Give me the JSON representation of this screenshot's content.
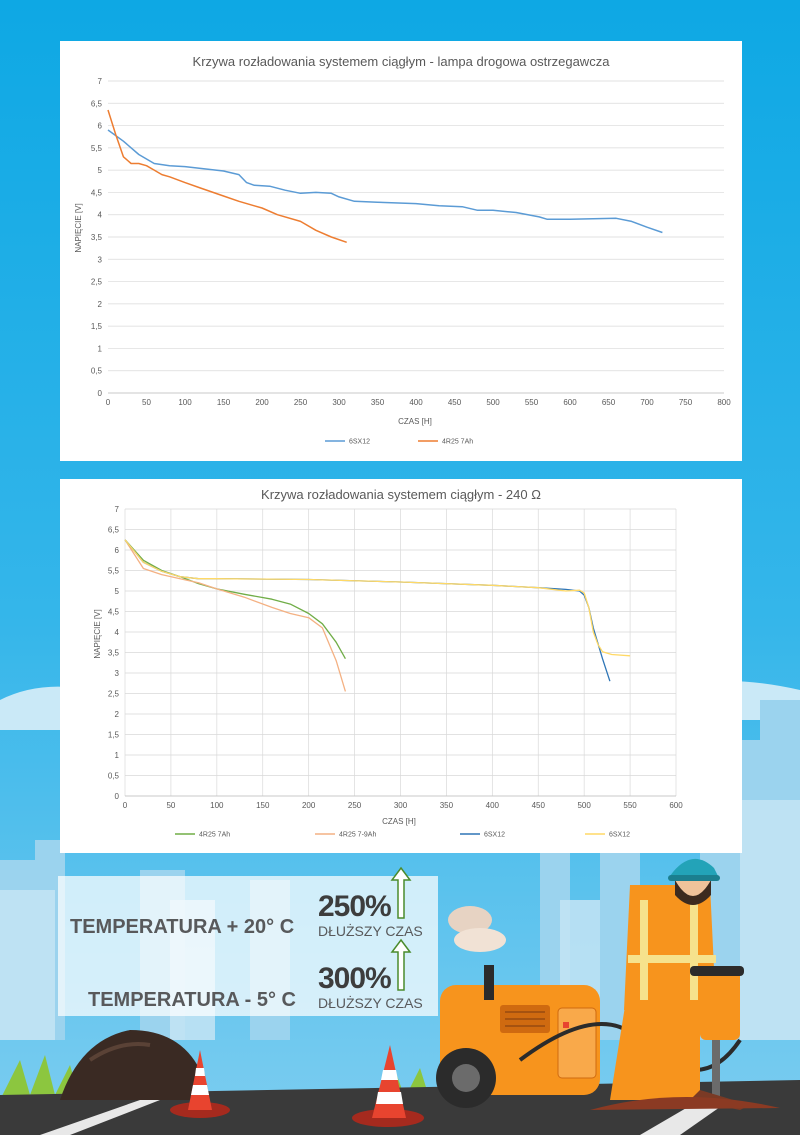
{
  "chart_data": [
    {
      "type": "line",
      "title": "Krzywa rozładowania systemem ciągłym - lampa drogowa ostrzegawcza",
      "xlabel": "CZAS [H]",
      "ylabel": "NAPIĘCIE [V]",
      "xlim": [
        0,
        800
      ],
      "ylim": [
        0,
        7
      ],
      "xticks": [
        "0",
        "50",
        "100",
        "150",
        "200",
        "250",
        "300",
        "350",
        "400",
        "450",
        "500",
        "550",
        "600",
        "650",
        "700",
        "750",
        "800"
      ],
      "yticks": [
        "0",
        "0,5",
        "1",
        "1,5",
        "2",
        "2,5",
        "3",
        "3,5",
        "4",
        "4,5",
        "5",
        "5,5",
        "6",
        "6,5",
        "7"
      ],
      "grid": "horizontal",
      "legend": "bottom",
      "series": [
        {
          "name": "6SX12",
          "color": "#5b9bd5",
          "x": [
            0,
            20,
            40,
            60,
            80,
            100,
            120,
            150,
            170,
            180,
            190,
            210,
            230,
            250,
            270,
            290,
            300,
            320,
            350,
            400,
            430,
            460,
            480,
            500,
            530,
            560,
            570,
            600,
            630,
            660,
            680,
            700,
            720
          ],
          "y": [
            5.9,
            5.65,
            5.35,
            5.15,
            5.1,
            5.08,
            5.04,
            4.98,
            4.9,
            4.72,
            4.66,
            4.64,
            4.55,
            4.48,
            4.5,
            4.48,
            4.4,
            4.3,
            4.28,
            4.25,
            4.2,
            4.18,
            4.1,
            4.1,
            4.05,
            3.95,
            3.9,
            3.9,
            3.91,
            3.92,
            3.85,
            3.72,
            3.6
          ]
        },
        {
          "name": "4R25 7Ah",
          "color": "#ed7d31",
          "x": [
            0,
            10,
            20,
            30,
            40,
            50,
            60,
            70,
            80,
            100,
            120,
            150,
            170,
            190,
            200,
            220,
            250,
            270,
            290,
            310
          ],
          "y": [
            6.35,
            5.8,
            5.3,
            5.15,
            5.15,
            5.1,
            5.0,
            4.9,
            4.85,
            4.72,
            4.6,
            4.42,
            4.3,
            4.2,
            4.15,
            4.0,
            3.85,
            3.65,
            3.5,
            3.38
          ]
        }
      ]
    },
    {
      "type": "line",
      "title": "Krzywa rozładowania systemem ciągłym - 240 Ω",
      "xlabel": "CZAS [H]",
      "ylabel": "NAPIĘCIE [V]",
      "xlim": [
        0,
        600
      ],
      "ylim": [
        0,
        7
      ],
      "xticks": [
        "0",
        "50",
        "100",
        "150",
        "200",
        "250",
        "300",
        "350",
        "400",
        "450",
        "500",
        "550",
        "600"
      ],
      "yticks": [
        "0",
        "0,5",
        "1",
        "1,5",
        "2",
        "2,5",
        "3",
        "3,5",
        "4",
        "4,5",
        "5",
        "5,5",
        "6",
        "6,5",
        "7"
      ],
      "grid": "both",
      "legend": "bottom",
      "series": [
        {
          "name": "4R25 7Ah",
          "color": "#70ad47",
          "x": [
            0,
            20,
            40,
            60,
            80,
            100,
            130,
            160,
            180,
            200,
            215,
            230,
            240
          ],
          "y": [
            6.25,
            5.75,
            5.5,
            5.35,
            5.18,
            5.05,
            4.92,
            4.8,
            4.68,
            4.45,
            4.2,
            3.75,
            3.35
          ]
        },
        {
          "name": "4R25 7-9Ah",
          "color": "#f4b183",
          "x": [
            0,
            20,
            40,
            60,
            80,
            100,
            130,
            160,
            180,
            200,
            215,
            230,
            240
          ],
          "y": [
            6.25,
            5.55,
            5.4,
            5.3,
            5.2,
            5.05,
            4.85,
            4.6,
            4.45,
            4.35,
            4.1,
            3.3,
            2.55
          ]
        },
        {
          "name": "6SX12",
          "color": "#2e75b6",
          "x": [
            0,
            20,
            40,
            60,
            80,
            100,
            200,
            300,
            400,
            450,
            480,
            495,
            500,
            505,
            510,
            520,
            528
          ],
          "y": [
            6.25,
            5.7,
            5.48,
            5.35,
            5.3,
            5.3,
            5.28,
            5.22,
            5.14,
            5.08,
            5.04,
            5.0,
            4.9,
            4.6,
            4.1,
            3.35,
            2.8
          ]
        },
        {
          "name": "6SX12",
          "color": "#ffd966",
          "x": [
            0,
            20,
            40,
            60,
            80,
            100,
            200,
            300,
            400,
            450,
            480,
            495,
            500,
            505,
            510,
            515,
            520,
            530,
            550
          ],
          "y": [
            6.25,
            5.7,
            5.48,
            5.35,
            5.3,
            5.3,
            5.28,
            5.22,
            5.14,
            5.08,
            5.0,
            5.02,
            4.95,
            4.6,
            4.0,
            3.7,
            3.52,
            3.45,
            3.42
          ]
        }
      ]
    }
  ],
  "info": {
    "temp1": "TEMPERATURA + 20° C",
    "pct1": "250%",
    "sub1": "DŁUŻSZY CZAS",
    "temp2": "TEMPERATURA - 5° C",
    "pct2": "300%",
    "sub2": "DŁUŻSZY CZAS",
    "arrow_color": "#4b8b2c"
  }
}
